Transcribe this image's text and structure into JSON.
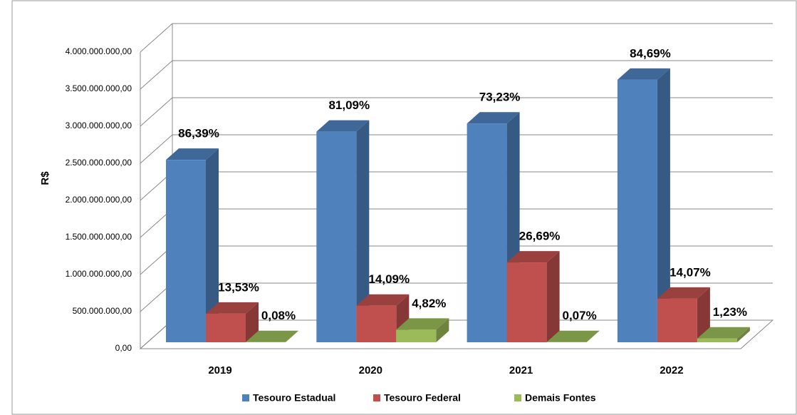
{
  "chart_data": {
    "type": "bar3d",
    "y_label": "R$",
    "categories": [
      "2019",
      "2020",
      "2021",
      "2022"
    ],
    "series": [
      {
        "name": "Tesouro Estadual",
        "color": "#4f81bd",
        "values": [
          2460000000,
          2840000000,
          2950000000,
          3540000000
        ],
        "value_labels": [
          "86,39%",
          "81,09%",
          "73,23%",
          "84,69%"
        ]
      },
      {
        "name": "Tesouro Federal",
        "color": "#c0504d",
        "values": [
          386000000,
          493000000,
          1076000000,
          588000000
        ],
        "value_labels": [
          "13,53%",
          "14,09%",
          "26,69%",
          "14,07%"
        ]
      },
      {
        "name": "Demais Fontes",
        "color": "#9bbb59",
        "values": [
          2300000,
          169000000,
          2800000,
          51000000
        ],
        "value_labels": [
          "0,08%",
          "4,82%",
          "0,07%",
          "1,23%"
        ]
      }
    ],
    "ylim": [
      0,
      4000000000
    ],
    "yticks": [
      {
        "value": 0,
        "label": "0,00"
      },
      {
        "value": 500000000,
        "label": "500.000.000,00"
      },
      {
        "value": 1000000000,
        "label": "1.000.000.000,00"
      },
      {
        "value": 1500000000,
        "label": "1.500.000.000,00"
      },
      {
        "value": 2000000000,
        "label": "2.000.000.000,00"
      },
      {
        "value": 2500000000,
        "label": "2.500.000.000,00"
      },
      {
        "value": 3000000000,
        "label": "3.000.000.000,00"
      },
      {
        "value": 3500000000,
        "label": "3.500.000.000,00"
      },
      {
        "value": 4000000000,
        "label": "4.000.000.000,00"
      }
    ],
    "grid": true,
    "legend": "bottom"
  }
}
